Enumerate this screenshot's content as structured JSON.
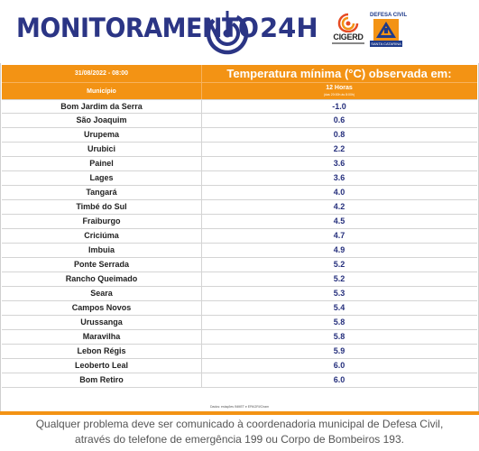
{
  "header": {
    "title": "MONITORAMENTO",
    "title_suffix": "24H",
    "brand_color": "#2b3585",
    "logos": {
      "cigerd": {
        "label": "CIGERD",
        "icon": "cigerd-flame-icon",
        "colors": [
          "#e64b23",
          "#f39314"
        ]
      },
      "defesa_civil": {
        "title": "DEFESA CIVIL",
        "subtitle": "SANTA CATARINA",
        "icon": "defesa-civil-triangle-icon",
        "colors": [
          "#f39314",
          "#1f3b8a"
        ]
      }
    }
  },
  "table": {
    "accent_color": "#f39314",
    "date_time": "31/08/2022 - 08:00",
    "main_heading": "Temperatura mínima (°C) observada em:",
    "col_municipio": "Município",
    "period": "12 Horas",
    "period_detail": "(das 20:00h às 8:00h)",
    "rows": [
      {
        "city": "Bom Jardim da Serra",
        "temp": "-1.0"
      },
      {
        "city": "São Joaquim",
        "temp": "0.6"
      },
      {
        "city": "Urupema",
        "temp": "0.8"
      },
      {
        "city": "Urubici",
        "temp": "2.2"
      },
      {
        "city": "Painel",
        "temp": "3.6"
      },
      {
        "city": "Lages",
        "temp": "3.6"
      },
      {
        "city": "Tangará",
        "temp": "4.0"
      },
      {
        "city": "Timbé do Sul",
        "temp": "4.2"
      },
      {
        "city": "Fraiburgo",
        "temp": "4.5"
      },
      {
        "city": "Criciúma",
        "temp": "4.7"
      },
      {
        "city": "Imbuia",
        "temp": "4.9"
      },
      {
        "city": "Ponte Serrada",
        "temp": "5.2"
      },
      {
        "city": "Rancho Queimado",
        "temp": "5.2"
      },
      {
        "city": "Seara",
        "temp": "5.3"
      },
      {
        "city": "Campos Novos",
        "temp": "5.4"
      },
      {
        "city": "Urussanga",
        "temp": "5.8"
      },
      {
        "city": "Maravilha",
        "temp": "5.8"
      },
      {
        "city": "Lebon Régis",
        "temp": "5.9"
      },
      {
        "city": "Leoberto Leal",
        "temp": "6.0"
      },
      {
        "city": "Bom Retiro",
        "temp": "6.0"
      }
    ],
    "source_note": "Dados: estações INMET e EPAGRI/Ciram"
  },
  "footer": {
    "line1": "Qualquer problema deve ser comunicado à coordenadoria municipal de Defesa Civil,",
    "line2": "através do telefone de emergência 199 ou Corpo de Bombeiros 193."
  }
}
